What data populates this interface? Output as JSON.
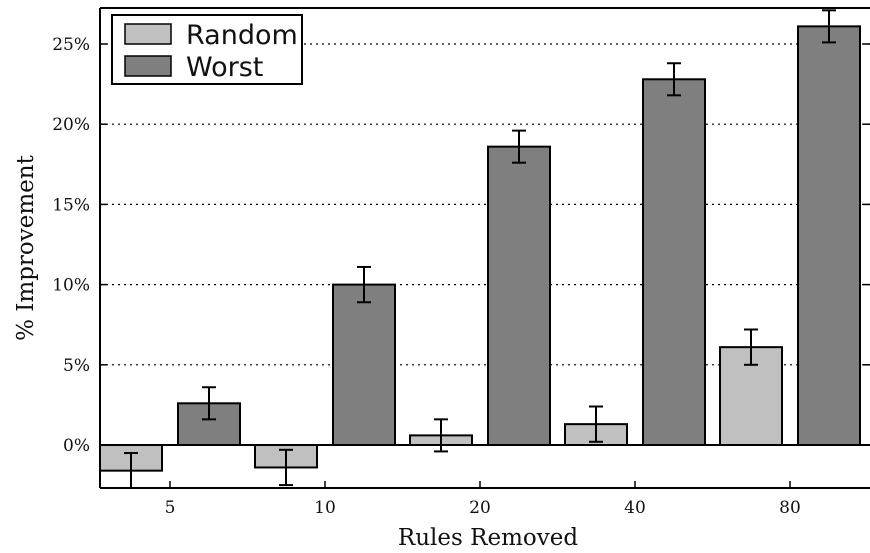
{
  "chart_data": {
    "type": "bar",
    "categories": [
      "5",
      "10",
      "20",
      "40",
      "80"
    ],
    "series": [
      {
        "name": "Random",
        "color": "#c0c0c0",
        "values": [
          -1.6,
          -1.4,
          0.6,
          1.3,
          6.1
        ],
        "errors": [
          1.1,
          1.1,
          1.0,
          1.1,
          1.1
        ]
      },
      {
        "name": "Worst",
        "color": "#7f7f7f",
        "values": [
          2.6,
          10.0,
          18.6,
          22.8,
          26.1
        ],
        "errors": [
          1.0,
          1.1,
          1.0,
          1.0,
          1.0
        ]
      }
    ],
    "xlabel": "Rules Removed",
    "ylabel": "% Improvement",
    "ylim": [
      -2.6,
      27.3
    ],
    "yticks": [
      0,
      5,
      10,
      15,
      20,
      25
    ],
    "ytick_labels": [
      "0%",
      "5%",
      "10%",
      "15%",
      "20%",
      "25%"
    ],
    "grid": "horizontal dotted",
    "legend": "top-left"
  }
}
